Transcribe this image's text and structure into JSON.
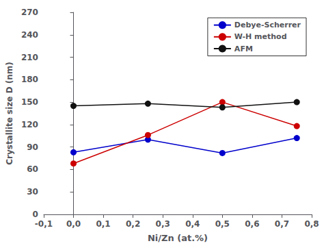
{
  "chart_data": {
    "type": "line",
    "xlabel": "Ni/Zn (at.%)",
    "ylabel": "Crystallite size D (nm)",
    "x": [
      0.0,
      0.25,
      0.5,
      0.75
    ],
    "series": [
      {
        "name": "Debye-Scherrer",
        "color": "#0000cc",
        "marker": "circle",
        "values": [
          83,
          100,
          82,
          102
        ]
      },
      {
        "name": "W-H method",
        "color": "#cc0000",
        "marker": "circle",
        "values": [
          68,
          106,
          150,
          118
        ]
      },
      {
        "name": "AFM",
        "color": "#111111",
        "marker": "circle",
        "values": [
          145,
          148,
          143,
          150
        ]
      }
    ],
    "xlim": [
      -0.1,
      0.8
    ],
    "xticks": [
      {
        "value": -0.1,
        "label": "-0,1"
      },
      {
        "value": 0.0,
        "label": "0,0"
      },
      {
        "value": 0.1,
        "label": "0,1"
      },
      {
        "value": 0.2,
        "label": "0,2"
      },
      {
        "value": 0.3,
        "label": "0,3"
      },
      {
        "value": 0.4,
        "label": "0,4"
      },
      {
        "value": 0.5,
        "label": "0,5"
      },
      {
        "value": 0.6,
        "label": "0,6"
      },
      {
        "value": 0.7,
        "label": "0,7"
      },
      {
        "value": 0.8,
        "label": "0,8"
      }
    ],
    "ylim": [
      0,
      270
    ],
    "yticks": [
      0,
      30,
      60,
      90,
      120,
      150,
      180,
      210,
      240,
      270
    ],
    "grid": false,
    "legend": "upper right"
  }
}
